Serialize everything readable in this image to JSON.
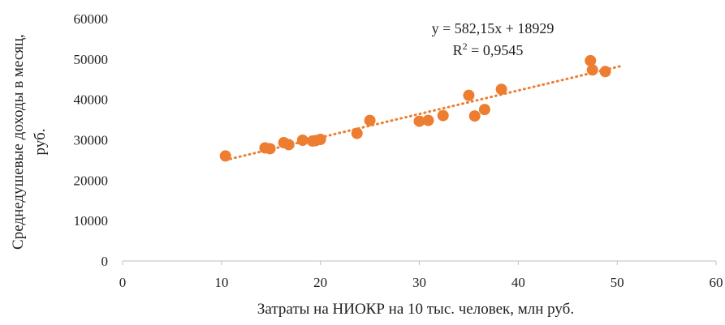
{
  "chart_data": {
    "type": "scatter",
    "xlabel": "Затраты на НИОКР на 10 тыс. человек, млн руб.",
    "ylabel_lines": [
      "Среднедушевые доходы в месяц,",
      "руб."
    ],
    "xlim": [
      0,
      60
    ],
    "ylim": [
      0,
      60000
    ],
    "x_ticks": [
      0,
      10,
      20,
      30,
      40,
      50,
      60
    ],
    "y_ticks": [
      0,
      10000,
      20000,
      30000,
      40000,
      50000,
      60000
    ],
    "grid": false,
    "legend": "none",
    "series": [
      {
        "points": [
          {
            "x": 10.4,
            "y": 26000
          },
          {
            "x": 14.4,
            "y": 28000
          },
          {
            "x": 14.9,
            "y": 27800
          },
          {
            "x": 16.3,
            "y": 29300
          },
          {
            "x": 16.8,
            "y": 28800
          },
          {
            "x": 18.2,
            "y": 29900
          },
          {
            "x": 19.2,
            "y": 29700
          },
          {
            "x": 19.5,
            "y": 29800
          },
          {
            "x": 20.0,
            "y": 30100
          },
          {
            "x": 23.7,
            "y": 31600
          },
          {
            "x": 25.0,
            "y": 34800
          },
          {
            "x": 30.0,
            "y": 34600
          },
          {
            "x": 30.9,
            "y": 34800
          },
          {
            "x": 32.4,
            "y": 36000
          },
          {
            "x": 35.0,
            "y": 41000
          },
          {
            "x": 35.6,
            "y": 35900
          },
          {
            "x": 36.6,
            "y": 37500
          },
          {
            "x": 38.3,
            "y": 42500
          },
          {
            "x": 47.3,
            "y": 49600
          },
          {
            "x": 47.5,
            "y": 47300
          },
          {
            "x": 48.8,
            "y": 46900
          }
        ]
      }
    ],
    "trendline": {
      "slope": 582.15,
      "intercept": 18929,
      "x_range": [
        10.4,
        50.3
      ],
      "style": "dotted"
    },
    "annotations": {
      "equation": "y = 582,15x + 18929",
      "r2_prefix": "R",
      "r2_sup": "2",
      "r2_value": " = 0,9545"
    },
    "colors": {
      "points": "#ED7D31",
      "trendline": "#ED7D31",
      "axis": "#bfbfbf",
      "text": "#1f1f1f"
    }
  }
}
